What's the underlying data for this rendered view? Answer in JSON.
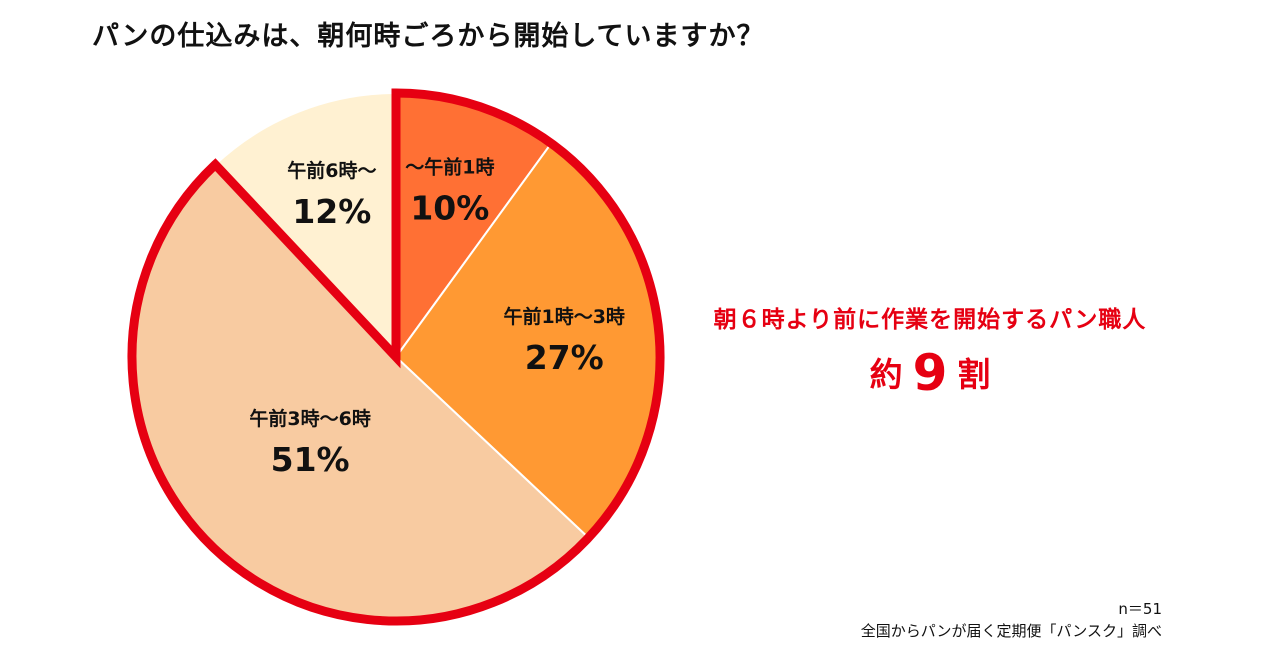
{
  "title": "パンの仕込みは、朝何時ごろから開始していますか？",
  "chart_data": {
    "type": "pie",
    "title": "パンの仕込みは、朝何時ごろから開始していますか？",
    "categories": [
      "～午前1時",
      "午前1時～3時",
      "午前3時～6時",
      "午前6時～"
    ],
    "values": [
      10,
      27,
      51,
      12
    ],
    "value_labels": [
      "10%",
      "27%",
      "51%",
      "12%"
    ],
    "colors": [
      "#ff7034",
      "#ff9933",
      "#f8cba1",
      "#fff1d2"
    ],
    "highlighted_categories": [
      "～午前1時",
      "午前1時～3時",
      "午前3時～6時"
    ],
    "highlight_color": "#e60012"
  },
  "callout": {
    "line1": "朝６時より前に作業を開始するパン職人",
    "prefix": "約",
    "number": "9",
    "suffix": "割"
  },
  "footnote": {
    "n": "n＝51",
    "source": "全国からパンが届く定期便「パンスク」調べ"
  }
}
